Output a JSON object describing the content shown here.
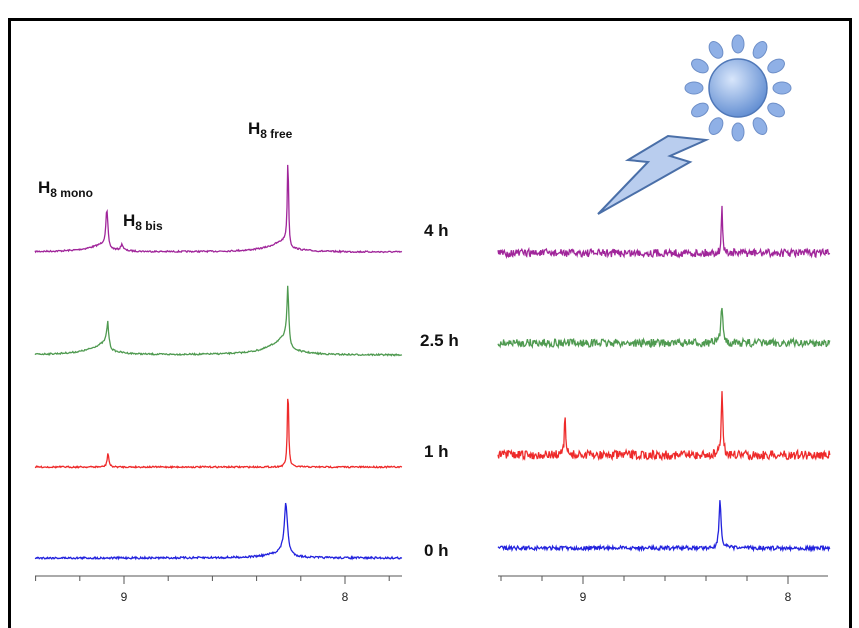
{
  "peak_labels": [
    {
      "main": "H",
      "sub": "8 mono"
    },
    {
      "main": "H",
      "sub": "8 bis"
    },
    {
      "main": "H",
      "sub": "8 free"
    }
  ],
  "times": [
    "4 h",
    "2.5 h",
    "1 h",
    "0 h"
  ],
  "left_axis_ticks": [
    "9",
    "8"
  ],
  "right_axis_ticks": [
    "9",
    "8"
  ]
}
